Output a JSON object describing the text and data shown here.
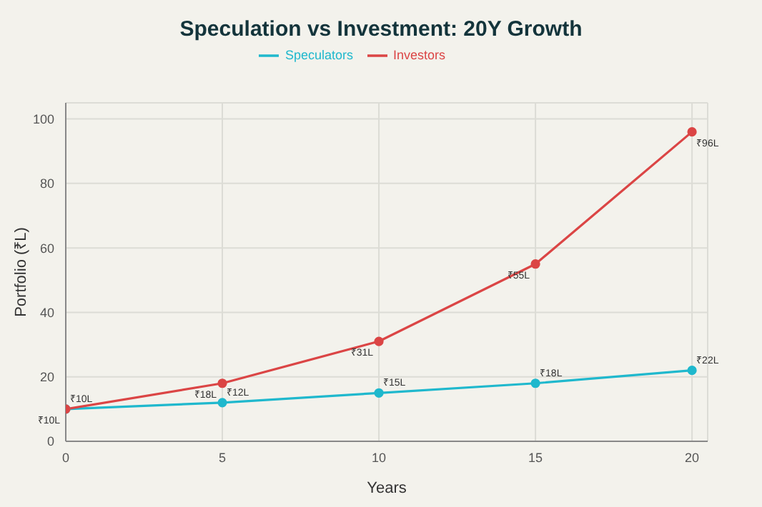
{
  "chart_data": {
    "type": "line",
    "title": "Speculation vs Investment: 20Y Growth",
    "xlabel": "Years",
    "ylabel": "Portfolio (₹L)",
    "x": [
      0,
      5,
      10,
      15,
      20
    ],
    "xlim": [
      0,
      20.5
    ],
    "xticks": [
      0,
      5,
      10,
      15,
      20
    ],
    "ylim": [
      0,
      105
    ],
    "yticks": [
      0,
      20,
      40,
      60,
      80,
      100
    ],
    "grid": true,
    "legend": "top",
    "marker": "circle",
    "line_style": "solid",
    "series": [
      {
        "name": "Speculators",
        "color": "#1fb8cd",
        "values": [
          10,
          12,
          15,
          18,
          22
        ],
        "value_labels": [
          "₹10L",
          "₹12L",
          "₹15L",
          "₹18L",
          "₹22L"
        ]
      },
      {
        "name": "Investors",
        "color": "#db4545",
        "values": [
          10,
          18,
          31,
          55,
          96
        ],
        "value_labels": [
          "₹10L",
          "₹18L",
          "₹31L",
          "₹55L",
          "₹96L"
        ]
      }
    ]
  }
}
